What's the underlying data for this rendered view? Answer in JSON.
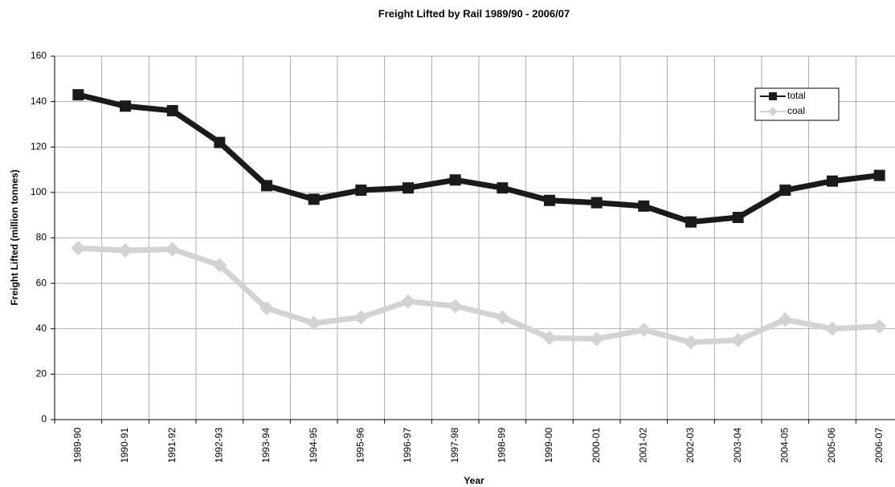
{
  "chart_data": {
    "type": "line",
    "title": "Freight Lifted by Rail 1989/90 - 2006/07",
    "x_label": "Year",
    "y_label": "Freight Lifted (million tonnes)",
    "categories": [
      "1989-90",
      "1990-91",
      "1991-92",
      "1992-93",
      "1993-94",
      "1994-95",
      "1995-96",
      "1996-97",
      "1997-98",
      "1998-99",
      "1999-00",
      "2000-01",
      "2001-02",
      "2002-03",
      "2003-04",
      "2004-05",
      "2005-06",
      "2006-07"
    ],
    "series": [
      {
        "name": "total",
        "color": "#1a1a1a",
        "marker": "square",
        "values": [
          143,
          138,
          136,
          122,
          103,
          97,
          101,
          102,
          105.5,
          102,
          96.5,
          95.5,
          94,
          87,
          89,
          101,
          105,
          107.5
        ]
      },
      {
        "name": "coal",
        "color": "#d3d3d3",
        "marker": "diamond",
        "values": [
          75.5,
          74.5,
          75,
          68,
          49,
          42.5,
          45,
          52,
          50,
          45,
          36,
          35.5,
          39.5,
          34,
          35,
          44,
          40,
          41
        ]
      }
    ],
    "ylim": [
      0,
      160
    ],
    "yticks": [
      0,
      20,
      40,
      60,
      80,
      100,
      120,
      140,
      160
    ],
    "grid": true,
    "legend": "upper right"
  }
}
